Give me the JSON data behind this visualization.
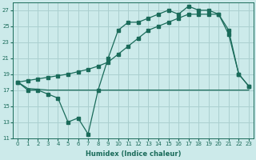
{
  "xlabel": "Humidex (Indice chaleur)",
  "bg_color": "#cceaea",
  "grid_color": "#aacfcf",
  "line_color": "#1a6b5a",
  "xlim": [
    -0.5,
    23.5
  ],
  "ylim": [
    11,
    28
  ],
  "xticks": [
    0,
    1,
    2,
    3,
    4,
    5,
    6,
    7,
    8,
    9,
    10,
    11,
    12,
    13,
    14,
    15,
    16,
    17,
    18,
    19,
    20,
    21,
    22,
    23
  ],
  "yticks": [
    11,
    13,
    15,
    17,
    19,
    21,
    23,
    25,
    27
  ],
  "line1_x": [
    0,
    1,
    2,
    3,
    4,
    5,
    6,
    7,
    8,
    9,
    10,
    11,
    12,
    13,
    14,
    15,
    16,
    17,
    18,
    19,
    20,
    21,
    22,
    23
  ],
  "line1_y": [
    18.0,
    17.0,
    17.0,
    16.5,
    16.0,
    13.0,
    13.5,
    11.5,
    17.0,
    21.0,
    24.5,
    25.5,
    25.5,
    26.0,
    26.5,
    27.0,
    26.5,
    27.5,
    27.0,
    27.0,
    26.5,
    24.5,
    19.0,
    17.5
  ],
  "line2_x": [
    0,
    1,
    2,
    3,
    4,
    5,
    6,
    7,
    8,
    9,
    10,
    11,
    12,
    13,
    14,
    15,
    16,
    17,
    18,
    19,
    20,
    21,
    22,
    23
  ],
  "line2_y": [
    18.0,
    17.2,
    17.1,
    17.0,
    17.0,
    17.0,
    17.0,
    17.0,
    17.0,
    17.0,
    17.0,
    17.0,
    17.0,
    17.0,
    17.0,
    17.0,
    17.0,
    17.0,
    17.0,
    17.0,
    17.0,
    17.0,
    17.0,
    17.0
  ],
  "line3_x": [
    0,
    1,
    2,
    3,
    4,
    5,
    6,
    7,
    8,
    9,
    10,
    11,
    12,
    13,
    14,
    15,
    16,
    17,
    18,
    19,
    20,
    21,
    22,
    23
  ],
  "line3_y": [
    18.0,
    18.2,
    18.4,
    18.6,
    18.8,
    19.0,
    19.3,
    19.6,
    20.0,
    20.5,
    21.5,
    22.5,
    23.5,
    24.5,
    25.0,
    25.5,
    26.0,
    26.5,
    26.5,
    26.5,
    26.5,
    24.0,
    19.0,
    17.5
  ]
}
